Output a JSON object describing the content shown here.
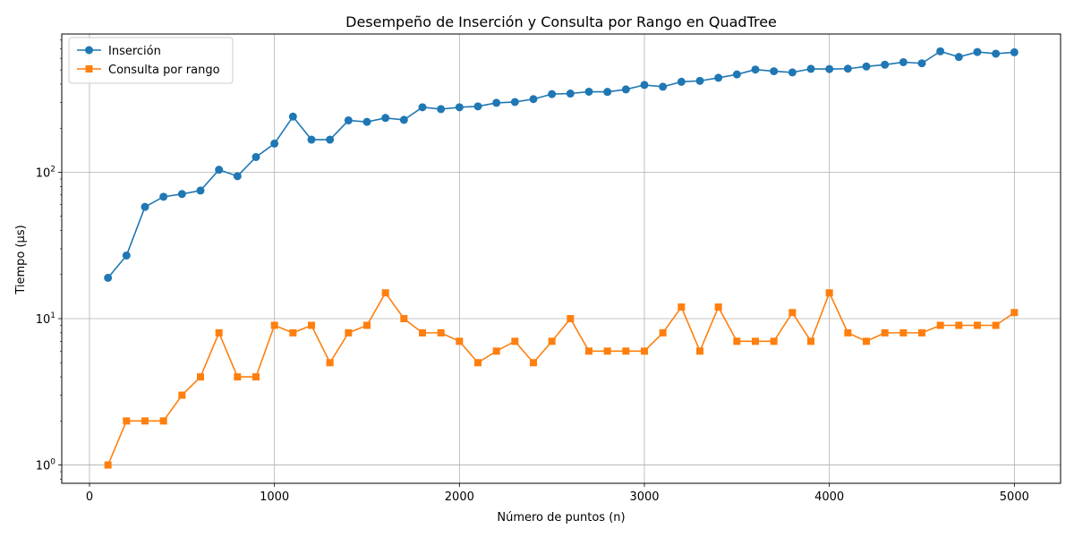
{
  "chart_data": {
    "type": "line",
    "title": "Desempeño de Inserción y Consulta por Rango en QuadTree",
    "xlabel": "Número de puntos (n)",
    "ylabel": "Tiempo (µs)",
    "yscale": "log",
    "xlim": [
      -150,
      5250
    ],
    "ylim": [
      0.75,
      880
    ],
    "xticks": [
      0,
      1000,
      2000,
      3000,
      4000,
      5000
    ],
    "yticks": [
      {
        "value": 1,
        "base": "10",
        "exp": "0"
      },
      {
        "value": 10,
        "base": "10",
        "exp": "1"
      },
      {
        "value": 100,
        "base": "10",
        "exp": "2"
      }
    ],
    "grid": true,
    "legend_position": "top-left",
    "x": [
      100,
      200,
      300,
      400,
      500,
      600,
      700,
      800,
      900,
      1000,
      1100,
      1200,
      1300,
      1400,
      1500,
      1600,
      1700,
      1800,
      1900,
      2000,
      2100,
      2200,
      2300,
      2400,
      2500,
      2600,
      2700,
      2800,
      2900,
      3000,
      3100,
      3200,
      3300,
      3400,
      3500,
      3600,
      3700,
      3800,
      3900,
      4000,
      4100,
      4200,
      4300,
      4400,
      4500,
      4600,
      4700,
      4800,
      4900,
      5000
    ],
    "series": [
      {
        "name": "Inserción",
        "color": "#1f77b4",
        "marker": "circle",
        "values": [
          19,
          27,
          58,
          68,
          71,
          75,
          104,
          94,
          127,
          157,
          240,
          167,
          167,
          226,
          221,
          235,
          228,
          278,
          270,
          278,
          282,
          298,
          302,
          316,
          342,
          345,
          355,
          354,
          368,
          395,
          384,
          415,
          421,
          442,
          466,
          503,
          490,
          481,
          509,
          507,
          510,
          528,
          543,
          565,
          555,
          670,
          613,
          663,
          646,
          660
        ]
      },
      {
        "name": "Consulta por rango",
        "color": "#ff7f0e",
        "marker": "square",
        "values": [
          1,
          2,
          2,
          2,
          3,
          4,
          8,
          4,
          4,
          9,
          8,
          9,
          5,
          8,
          9,
          15,
          10,
          8,
          8,
          7,
          5,
          6,
          7,
          5,
          7,
          10,
          6,
          6,
          6,
          6,
          8,
          12,
          6,
          12,
          7,
          7,
          7,
          11,
          7,
          15,
          8,
          7,
          8,
          8,
          8,
          9,
          9,
          9,
          9,
          11
        ]
      }
    ]
  }
}
